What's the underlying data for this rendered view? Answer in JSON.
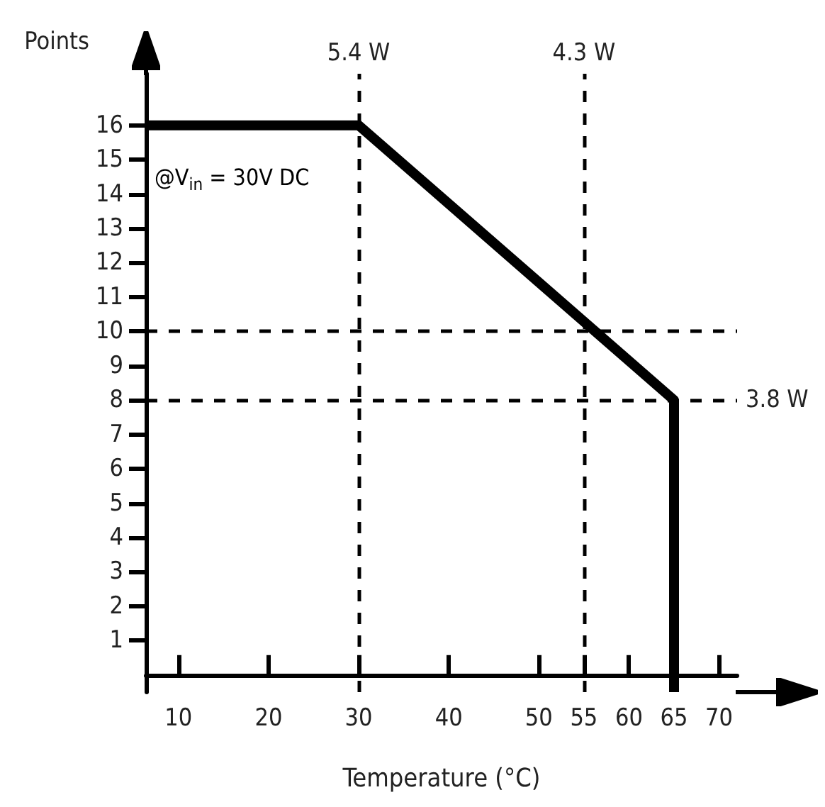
{
  "chart_data": {
    "type": "line",
    "xlabel": "Temperature (°C)",
    "ylabel": "Points",
    "x": [
      6.4,
      30,
      65,
      65
    ],
    "series": [
      {
        "color": "#000000",
        "values": [
          16,
          16,
          8,
          -0.5
        ]
      }
    ],
    "xlim": [
      6.4,
      72
    ],
    "xticks": [
      10,
      20,
      30,
      40,
      50,
      55,
      60,
      65,
      70
    ],
    "ylim": [
      -0.5,
      17.5
    ],
    "yticks": [
      1,
      2,
      3,
      4,
      5,
      6,
      7,
      8,
      9,
      10,
      11,
      12,
      13,
      14,
      15,
      16
    ],
    "grid": false,
    "marker": "none",
    "line_style": "solid",
    "ref_lines": [
      {
        "axis": "x",
        "value": 30,
        "label": "5.4 W",
        "line_style": "dashed",
        "color": "#000000"
      },
      {
        "axis": "x",
        "value": 55,
        "label": "4.3 W",
        "line_style": "dashed",
        "color": "#000000"
      },
      {
        "axis": "y",
        "value": 10,
        "label": null,
        "line_style": "dashed",
        "color": "#000000"
      },
      {
        "axis": "y",
        "value": 8,
        "label": "3.8 W",
        "line_style": "dashed",
        "color": "#000000"
      }
    ],
    "annotations": [
      "@V$_{in}$ = 30V DC"
    ]
  }
}
